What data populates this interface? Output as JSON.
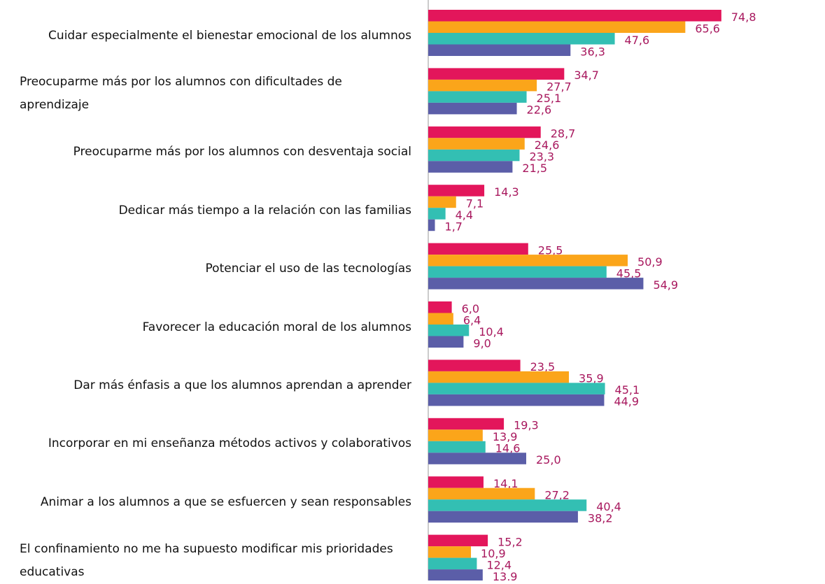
{
  "chart_data": {
    "type": "bar",
    "orientation": "horizontal",
    "categories": [
      "Cuidar especialmente el bienestar emocional de los alumnos",
      "Preocuparme más por los  alumnos con dificultades de aprendizaje",
      "Preocuparme más por los alumnos con desventaja social",
      "Dedicar más tiempo a la relación con las familias",
      "Potenciar el uso de las tecnologías",
      "Favorecer la educación moral de los alumnos",
      "Dar más énfasis a que los alumnos aprendan a aprender",
      "Incorporar en mi enseñanza métodos activos y colaborativos",
      "Animar a los alumnos a que se esfuercen y sean responsables",
      "El confinamiento no me ha supuesto modificar mis prioridades educativas"
    ],
    "series": [
      {
        "color": "#e3165b",
        "values": [
          74.8,
          34.7,
          28.7,
          14.3,
          25.5,
          6.0,
          23.5,
          19.3,
          14.1,
          15.2
        ],
        "value_labels": [
          "74,8",
          "34,7",
          "28,7",
          "14,3",
          "25,5",
          "6,0",
          "23,5",
          "19,3",
          "14,1",
          "15,2"
        ]
      },
      {
        "color": "#fba51a",
        "values": [
          65.6,
          27.7,
          24.6,
          7.1,
          50.9,
          6.4,
          35.9,
          13.9,
          27.2,
          10.9
        ],
        "value_labels": [
          "65,6",
          "27,7",
          "24,6",
          "7,1",
          "50,9",
          "6,4",
          "35,9",
          "13,9",
          "27,2",
          "10,9"
        ]
      },
      {
        "color": "#33bfb3",
        "values": [
          47.6,
          25.1,
          23.3,
          4.4,
          45.5,
          10.4,
          45.1,
          14.6,
          40.4,
          12.4
        ],
        "value_labels": [
          "47,6",
          "25,1",
          "23,3",
          "4,4",
          "45,5",
          "10,4",
          "45,1",
          "14,6",
          "40,4",
          "12,4"
        ]
      },
      {
        "color": "#5b5ea8",
        "values": [
          36.3,
          22.6,
          21.5,
          1.7,
          54.9,
          9.0,
          44.9,
          25.0,
          38.2,
          13.9
        ],
        "value_labels": [
          "36,3",
          "22,6",
          "21,5",
          "1,7",
          "54,9",
          "9,0",
          "44,9",
          "25,0",
          "38,2",
          "13,9"
        ]
      }
    ],
    "label_color": "#a8185e"
  }
}
